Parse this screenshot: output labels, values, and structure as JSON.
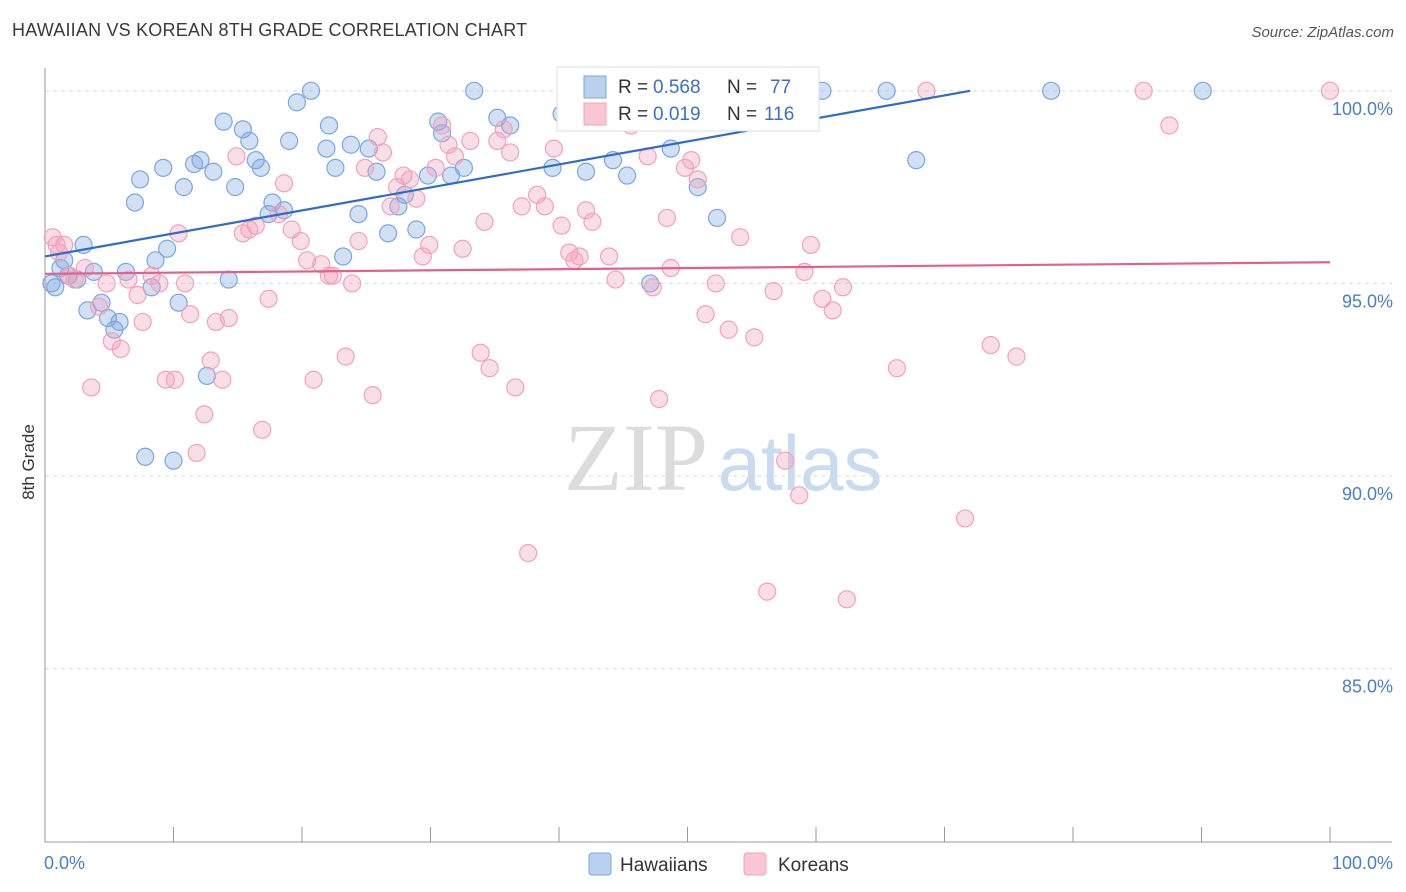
{
  "title": "HAWAIIAN VS KOREAN 8TH GRADE CORRELATION CHART",
  "source": "Source: ZipAtlas.com",
  "watermark": {
    "zip": "ZIP",
    "atlas": "atlas"
  },
  "chart_data": {
    "type": "scatter",
    "ylabel": "8th Grade",
    "xlim": [
      0,
      100
    ],
    "ylim": [
      80.5,
      100.8
    ],
    "x_tick_labels": [
      "0.0%",
      "100.0%"
    ],
    "y_ticks": [
      {
        "value": 100,
        "label": "100.0%"
      },
      {
        "value": 95,
        "label": "95.0%"
      },
      {
        "value": 90,
        "label": "90.0%"
      },
      {
        "value": 85,
        "label": "85.0%"
      }
    ],
    "grid": "horizontal dashed",
    "legend_stats": [
      {
        "r_label": "R =",
        "r": "0.568",
        "n_label": "N =",
        "n": "77"
      },
      {
        "r_label": "R =",
        "r": "0.019",
        "n_label": "N =",
        "n": "116"
      }
    ],
    "series": [
      {
        "name": "Hawaiians",
        "color": "#7aa7e0",
        "line_color": "#2f6bc9",
        "trend": [
          [
            0,
            95.7
          ],
          [
            72,
            100
          ]
        ],
        "points": [
          [
            0.5,
            95.0
          ],
          [
            0.8,
            94.9
          ],
          [
            1.2,
            95.4
          ],
          [
            1.5,
            95.6
          ],
          [
            1.8,
            95.2
          ],
          [
            2.5,
            95.1
          ],
          [
            3,
            96.0
          ],
          [
            3.3,
            94.3
          ],
          [
            3.8,
            95.3
          ],
          [
            4.4,
            94.5
          ],
          [
            4.9,
            94.1
          ],
          [
            5.4,
            93.8
          ],
          [
            5.8,
            94.0
          ],
          [
            6.3,
            95.3
          ],
          [
            7,
            97.1
          ],
          [
            7.4,
            97.7
          ],
          [
            7.8,
            90.5
          ],
          [
            8.3,
            94.9
          ],
          [
            8.6,
            95.6
          ],
          [
            9.2,
            98.0
          ],
          [
            9.5,
            95.9
          ],
          [
            10,
            90.4
          ],
          [
            10.4,
            94.5
          ],
          [
            10.8,
            97.5
          ],
          [
            11.6,
            98.1
          ],
          [
            12.1,
            98.2
          ],
          [
            12.6,
            92.6
          ],
          [
            13.1,
            97.9
          ],
          [
            13.9,
            99.2
          ],
          [
            14.3,
            95.1
          ],
          [
            14.8,
            97.5
          ],
          [
            15.4,
            99.0
          ],
          [
            15.9,
            98.7
          ],
          [
            16.4,
            98.2
          ],
          [
            16.8,
            98.0
          ],
          [
            17.4,
            96.8
          ],
          [
            17.7,
            97.1
          ],
          [
            18.6,
            96.9
          ],
          [
            19,
            98.7
          ],
          [
            19.6,
            99.7
          ],
          [
            20.7,
            100
          ],
          [
            21.9,
            98.5
          ],
          [
            22.1,
            99.1
          ],
          [
            22.6,
            98.0
          ],
          [
            23.2,
            95.7
          ],
          [
            23.8,
            98.6
          ],
          [
            24.4,
            96.8
          ],
          [
            25.2,
            98.5
          ],
          [
            25.8,
            97.9
          ],
          [
            26.7,
            96.3
          ],
          [
            27.5,
            97.0
          ],
          [
            28,
            97.3
          ],
          [
            28.9,
            96.4
          ],
          [
            29.8,
            97.8
          ],
          [
            30.6,
            99.2
          ],
          [
            30.9,
            98.9
          ],
          [
            31.6,
            97.8
          ],
          [
            32.6,
            98.0
          ],
          [
            33.4,
            100
          ],
          [
            35.2,
            99.3
          ],
          [
            36.2,
            99.1
          ],
          [
            39.5,
            98.0
          ],
          [
            40.2,
            99.4
          ],
          [
            42.1,
            97.9
          ],
          [
            44.2,
            98.2
          ],
          [
            45.3,
            97.8
          ],
          [
            47.1,
            95.0
          ],
          [
            47.5,
            100
          ],
          [
            48.7,
            98.5
          ],
          [
            50.2,
            100
          ],
          [
            50.8,
            97.5
          ],
          [
            52.3,
            96.7
          ],
          [
            60.5,
            100
          ],
          [
            65.5,
            100
          ],
          [
            67.8,
            98.2
          ],
          [
            78.3,
            100
          ],
          [
            90.1,
            100
          ]
        ]
      },
      {
        "name": "Koreans",
        "color": "#f2a1bb",
        "line_color": "#e2608f",
        "trend": [
          [
            0,
            95.25
          ],
          [
            100,
            95.55
          ]
        ],
        "points": [
          [
            0.6,
            96.2
          ],
          [
            0.9,
            96.0
          ],
          [
            1.1,
            95.8
          ],
          [
            1.5,
            96.0
          ],
          [
            1.9,
            95.2
          ],
          [
            2.3,
            95.1
          ],
          [
            3.1,
            95.4
          ],
          [
            3.6,
            92.3
          ],
          [
            4.2,
            94.4
          ],
          [
            4.8,
            95.0
          ],
          [
            5.2,
            93.5
          ],
          [
            5.9,
            93.3
          ],
          [
            6.5,
            95.1
          ],
          [
            7.2,
            94.7
          ],
          [
            7.6,
            94.0
          ],
          [
            8.3,
            95.2
          ],
          [
            8.9,
            95.0
          ],
          [
            9.4,
            92.5
          ],
          [
            10.1,
            92.5
          ],
          [
            10.4,
            96.3
          ],
          [
            10.9,
            95.0
          ],
          [
            11.3,
            94.2
          ],
          [
            11.8,
            90.6
          ],
          [
            12.4,
            91.6
          ],
          [
            12.9,
            93.0
          ],
          [
            13.3,
            94.0
          ],
          [
            13.8,
            92.5
          ],
          [
            14.3,
            94.1
          ],
          [
            14.9,
            98.3
          ],
          [
            15.4,
            96.3
          ],
          [
            15.9,
            96.4
          ],
          [
            16.4,
            96.5
          ],
          [
            16.9,
            91.2
          ],
          [
            17.4,
            94.6
          ],
          [
            18.2,
            96.8
          ],
          [
            18.6,
            97.6
          ],
          [
            19.2,
            96.4
          ],
          [
            19.9,
            96.1
          ],
          [
            20.4,
            95.6
          ],
          [
            20.9,
            92.5
          ],
          [
            21.5,
            95.5
          ],
          [
            22.1,
            95.2
          ],
          [
            22.4,
            95.2
          ],
          [
            23.4,
            93.1
          ],
          [
            23.9,
            95.0
          ],
          [
            24.4,
            96.1
          ],
          [
            24.9,
            98.0
          ],
          [
            25.5,
            92.1
          ],
          [
            25.9,
            98.8
          ],
          [
            26.3,
            98.4
          ],
          [
            26.9,
            97.0
          ],
          [
            27.4,
            97.5
          ],
          [
            27.9,
            97.8
          ],
          [
            28.4,
            97.7
          ],
          [
            28.9,
            97.2
          ],
          [
            29.4,
            95.7
          ],
          [
            29.9,
            96.0
          ],
          [
            30.4,
            98.0
          ],
          [
            30.9,
            99.1
          ],
          [
            31.4,
            98.6
          ],
          [
            31.9,
            98.3
          ],
          [
            32.5,
            95.9
          ],
          [
            33.1,
            98.7
          ],
          [
            33.9,
            93.2
          ],
          [
            34.2,
            96.6
          ],
          [
            34.6,
            92.8
          ],
          [
            35.2,
            98.7
          ],
          [
            35.7,
            99.0
          ],
          [
            36.2,
            98.4
          ],
          [
            36.6,
            92.3
          ],
          [
            37.1,
            97.0
          ],
          [
            37.6,
            88.0
          ],
          [
            38.3,
            97.3
          ],
          [
            38.9,
            97.0
          ],
          [
            39.6,
            98.5
          ],
          [
            40.2,
            96.5
          ],
          [
            40.8,
            95.8
          ],
          [
            41.2,
            95.6
          ],
          [
            41.6,
            95.7
          ],
          [
            42.1,
            96.9
          ],
          [
            42.6,
            96.6
          ],
          [
            43.9,
            95.7
          ],
          [
            44.4,
            95.1
          ],
          [
            45.6,
            99.1
          ],
          [
            46.1,
            99.2
          ],
          [
            46.9,
            98.3
          ],
          [
            47.3,
            94.9
          ],
          [
            47.8,
            92.0
          ],
          [
            48.4,
            96.7
          ],
          [
            48.7,
            95.4
          ],
          [
            49.8,
            98.0
          ],
          [
            50.3,
            98.2
          ],
          [
            50.8,
            97.7
          ],
          [
            51.4,
            94.2
          ],
          [
            52.2,
            95.0
          ],
          [
            53.2,
            93.8
          ],
          [
            54.1,
            96.2
          ],
          [
            55.2,
            93.6
          ],
          [
            56.2,
            87.0
          ],
          [
            56.7,
            94.8
          ],
          [
            57.6,
            90.4
          ],
          [
            58.7,
            89.5
          ],
          [
            59.1,
            95.3
          ],
          [
            59.6,
            96.0
          ],
          [
            60.5,
            94.6
          ],
          [
            61.3,
            94.3
          ],
          [
            62.1,
            94.9
          ],
          [
            62.4,
            86.8
          ],
          [
            66.3,
            92.8
          ],
          [
            68.6,
            100
          ],
          [
            71.6,
            88.9
          ],
          [
            73.6,
            93.4
          ],
          [
            75.6,
            93.1
          ],
          [
            85.5,
            100
          ],
          [
            87.5,
            99.1
          ],
          [
            100,
            100
          ]
        ]
      }
    ]
  }
}
